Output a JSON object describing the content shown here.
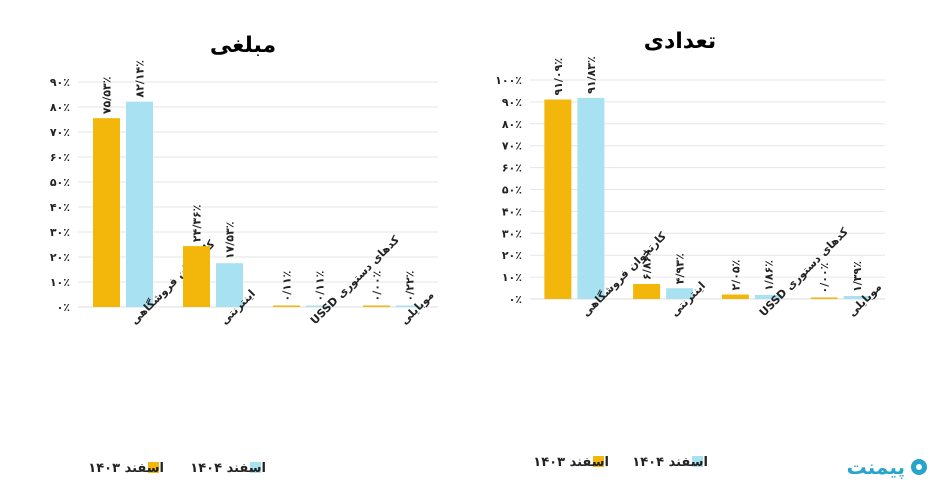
{
  "legend": {
    "a": "اسفند ۱۴۰۳",
    "b": "اسفند ۱۴۰۴"
  },
  "colors": {
    "a": "#f2b70a",
    "b": "#a8e2f2"
  },
  "logo_text": "پیمنت",
  "chart_data": [
    {
      "type": "bar",
      "title": "مبلغی",
      "categories": [
        "کارتخوان فروشگاهی",
        "اینترنتی",
        "کدهای دستوری USSD",
        "موبایلی"
      ],
      "series": [
        {
          "name": "اسفند ۱۴۰۳",
          "values": [
            75.53,
            24.36,
            0.11,
            0.0
          ],
          "labels": [
            "۷۵/۵۳٪",
            "۲۴/۳۶٪",
            "۰/۱۱٪",
            "۰/۰۰٪"
          ]
        },
        {
          "name": "اسفند ۱۴۰۴",
          "values": [
            82.14,
            17.53,
            0.11,
            0.22
          ],
          "labels": [
            "۸۲/۱۴٪",
            "۱۷/۵۳٪",
            "۰/۱۱٪",
            "۰/۲۲٪"
          ]
        }
      ],
      "ylim": [
        0,
        90
      ],
      "yticks": [
        "۰٪",
        "۱۰٪",
        "۲۰٪",
        "۳۰٪",
        "۴۰٪",
        "۵۰٪",
        "۶۰٪",
        "۷۰٪",
        "۸۰٪",
        "۹۰٪"
      ],
      "grid": true,
      "legend_position": "bottom"
    },
    {
      "type": "bar",
      "title": "تعدادی",
      "categories": [
        "کارتخوان فروشگاهی",
        "اینترنتی",
        "کدهای دستوری USSD",
        "موبایلی"
      ],
      "series": [
        {
          "name": "اسفند ۱۴۰۳",
          "values": [
            91.09,
            6.86,
            2.05,
            0.0
          ],
          "labels": [
            "۹۱/۰۹٪",
            "۶/۸۶٪",
            "۲/۰۵٪",
            "۰/۰۰٪"
          ]
        },
        {
          "name": "اسفند ۱۴۰۴",
          "values": [
            91.83,
            4.93,
            1.86,
            1.39
          ],
          "labels": [
            "۹۱/۸۳٪",
            "۴/۹۳٪",
            "۱/۸۶٪",
            "۱/۳۹٪"
          ]
        }
      ],
      "ylim": [
        0,
        100
      ],
      "yticks": [
        "۰٪",
        "۱۰٪",
        "۲۰٪",
        "۳۰٪",
        "۴۰٪",
        "۵۰٪",
        "۶۰٪",
        "۷۰٪",
        "۸۰٪",
        "۹۰٪",
        "۱۰۰٪"
      ],
      "grid": true,
      "legend_position": "bottom"
    }
  ]
}
